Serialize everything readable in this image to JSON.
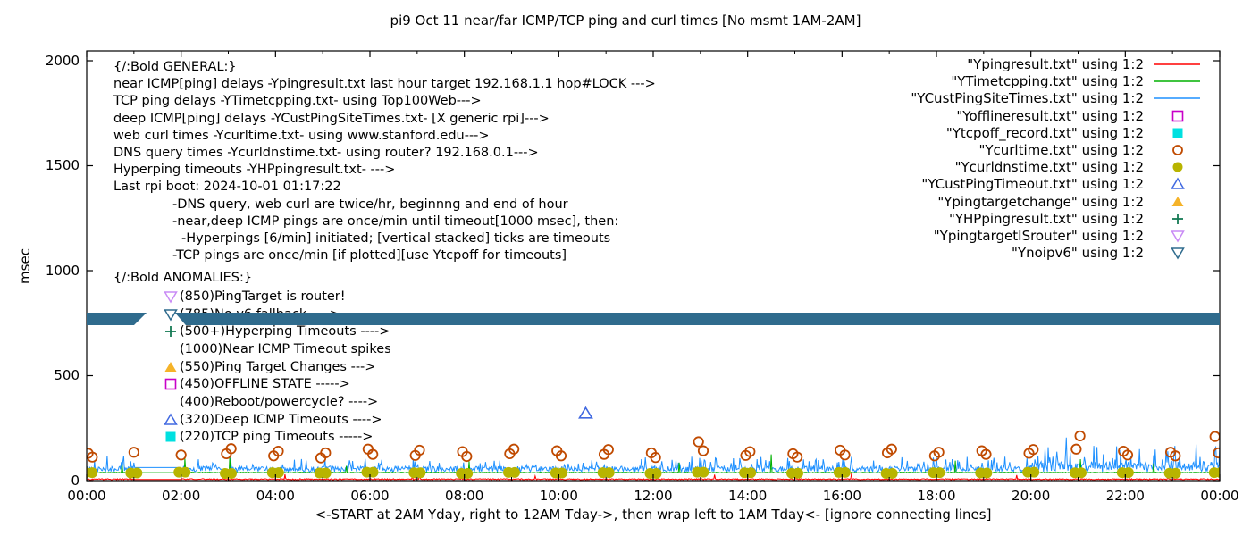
{
  "anomalies": {
    "header": "{/:Bold ANOMALIES:}",
    "items": [
      {
        "marker": "tri-down-open",
        "color": "#c98bf5",
        "text": "(850)PingTarget is router!"
      },
      {
        "marker": "tri-down-open",
        "color": "#2f6b8d",
        "text": "(785)No v6 fallback ---->"
      },
      {
        "marker": "plus",
        "color": "#147a54",
        "text": "(500+)Hyperping Timeouts ---->"
      },
      {
        "marker": "none",
        "color": "",
        "text": "(1000)Near ICMP Timeout spikes"
      },
      {
        "marker": "tri-up-filled",
        "color": "#f5b329",
        "text": "(550)Ping Target Changes --->"
      },
      {
        "marker": "square-open",
        "color": "#c800c8",
        "text": "(450)OFFLINE STATE ----->"
      },
      {
        "marker": "none",
        "color": "",
        "text": "(400)Reboot/powercycle? ---->"
      },
      {
        "marker": "tri-up-open",
        "color": "#4169e1",
        "text": "(320)Deep ICMP Timeouts ---->"
      },
      {
        "marker": "square-filled",
        "color": "#00e0e0",
        "text": "(220)TCP ping Timeouts ----->"
      }
    ]
  },
  "general_lines": [
    {
      "indent": 0,
      "text": "{/:Bold GENERAL:}"
    },
    {
      "indent": 0,
      "text": "near ICMP[ping] delays -Ypingresult.txt last hour target 192.168.1.1 hop#LOCK --->"
    },
    {
      "indent": 0,
      "text": "TCP ping delays -YTimetcpping.txt- using Top100Web--->"
    },
    {
      "indent": 0,
      "text": "deep ICMP[ping] delays -YCustPingSiteTimes.txt- [X generic rpi]--->"
    },
    {
      "indent": 0,
      "text": "web curl times -Ycurltime.txt- using www.stanford.edu--->"
    },
    {
      "indent": 0,
      "text": "DNS query times -Ycurldnstime.txt- using router? 192.168.0.1--->"
    },
    {
      "indent": 0,
      "text": "Hyperping timeouts -YHPpingresult.txt- --->"
    },
    {
      "indent": 0,
      "text": "Last rpi boot: 2024-10-01 01:17:22"
    },
    {
      "indent": 66,
      "text": "-DNS query, web curl are twice/hr, beginnng and end of hour"
    },
    {
      "indent": 66,
      "text": "-near,deep ICMP pings are once/min until timeout[1000 msec], then:"
    },
    {
      "indent": 76,
      "text": "-Hyperpings [6/min] initiated; [vertical stacked] ticks are timeouts"
    },
    {
      "indent": 66,
      "text": "-TCP pings are once/min [if plotted][use Ytcpoff for timeouts]"
    }
  ],
  "legend": [
    {
      "label": "\"Ypingresult.txt\" using 1:2",
      "marker": "line",
      "color": "#ff0000"
    },
    {
      "label": "\"YTimetcpping.txt\" using 1:2",
      "marker": "line",
      "color": "#00b000"
    },
    {
      "label": "\"YCustPingSiteTimes.txt\" using 1:2",
      "marker": "line",
      "color": "#1e90ff"
    },
    {
      "label": "\"Yofflineresult.txt\" using 1:2",
      "marker": "square-open",
      "color": "#c800c8"
    },
    {
      "label": "\"Ytcpoff_record.txt\" using 1:2",
      "marker": "square-filled",
      "color": "#00e0e0"
    },
    {
      "label": "\"Ycurltime.txt\" using 1:2",
      "marker": "circle-open",
      "color": "#c04a00"
    },
    {
      "label": "\"Ycurldnstime.txt\" using 1:2",
      "marker": "circle-filled",
      "color": "#b8b400"
    },
    {
      "label": "\"YCustPingTimeout.txt\" using 1:2",
      "marker": "tri-up-open",
      "color": "#4169e1"
    },
    {
      "label": "\"Ypingtargetchange\" using 1:2",
      "marker": "tri-up-filled",
      "color": "#f5b329"
    },
    {
      "label": "\"YHPpingresult.txt\" using 1:2",
      "marker": "plus",
      "color": "#147a54"
    },
    {
      "label": "\"YpingtargetISrouter\" using 1:2",
      "marker": "tri-down-open",
      "color": "#c98bf5"
    },
    {
      "label": "\"Ynoipv6\" using 1:2",
      "marker": "tri-down-open",
      "color": "#2f6b8d"
    }
  ],
  "chart_data": {
    "type": "line",
    "title": "pi9 Oct 11  near/far ICMP/TCP ping and curl times [No msmt 1AM-2AM]",
    "ylabel": "msec",
    "xlabel": "<-START at 2AM Yday, right to 12AM Tday->, then wrap left to 1AM Tday<- [ignore connecting lines]",
    "ylim": [
      0,
      2045
    ],
    "y_ticks": [
      0,
      500,
      1000,
      1500,
      2000
    ],
    "x_hours_range": [
      0,
      24
    ],
    "x_major_tick_hours": [
      0,
      2,
      4,
      6,
      8,
      10,
      12,
      14,
      16,
      18,
      20,
      22,
      24
    ],
    "x_major_tick_labels": [
      "00:00",
      "02:00",
      "04:00",
      "06:00",
      "08:00",
      "10:00",
      "12:00",
      "14:00",
      "16:00",
      "18:00",
      "20:00",
      "22:00",
      "00:00"
    ],
    "x_minor_tick_hours": [
      1,
      3,
      5,
      7,
      9,
      11,
      13,
      15,
      17,
      19,
      21,
      23
    ],
    "no_msmt_window_hours": [
      1,
      2
    ],
    "rng_seed": 42,
    "series_lines": [
      {
        "name": "YCustPingSiteTimes.txt",
        "color": "#1e90ff",
        "baseline": 42,
        "noise": 26,
        "spike_prob": 0.16,
        "spike_amp": 55,
        "late_hour": 20,
        "late_mult": 1.9,
        "gap_value": 62,
        "spikes": [
          [
            20.3,
            150
          ],
          [
            20.75,
            205
          ],
          [
            21.4,
            160
          ],
          [
            21.9,
            145
          ],
          [
            22.3,
            150
          ],
          [
            22.9,
            140
          ],
          [
            23.5,
            172
          ]
        ]
      },
      {
        "name": "YTimetcpping.txt",
        "color": "#00b000",
        "baseline": 37,
        "noise": 3,
        "gap_value": 38,
        "spikes": [
          [
            0.75,
            78
          ],
          [
            2.08,
            105
          ],
          [
            3.03,
            112
          ],
          [
            5.5,
            70
          ],
          [
            8.1,
            92
          ],
          [
            12.55,
            86
          ],
          [
            14.5,
            125
          ],
          [
            18.4,
            95
          ],
          [
            21.05,
            102
          ],
          [
            22.6,
            82
          ]
        ]
      },
      {
        "name": "Ypingresult.txt",
        "color": "#ff0000",
        "baseline": 4,
        "noise": 5,
        "gap_value": 5,
        "spikes": [
          [
            4.2,
            30
          ],
          [
            6.9,
            26
          ],
          [
            7.05,
            42
          ],
          [
            9.5,
            22
          ],
          [
            13.3,
            28
          ],
          [
            16.2,
            36
          ],
          [
            19.7,
            26
          ],
          [
            22.9,
            20
          ]
        ]
      }
    ],
    "curl_points": {
      "name": "Ycurltime.txt",
      "color": "#c04a00",
      "points": [
        [
          0.03,
          130
        ],
        [
          0.12,
          112
        ],
        [
          1.0,
          135
        ],
        [
          2.0,
          122
        ],
        [
          2.96,
          128
        ],
        [
          3.06,
          152
        ],
        [
          3.96,
          118
        ],
        [
          4.06,
          140
        ],
        [
          4.96,
          108
        ],
        [
          5.06,
          132
        ],
        [
          5.96,
          150
        ],
        [
          6.06,
          125
        ],
        [
          6.96,
          120
        ],
        [
          7.05,
          145
        ],
        [
          7.96,
          138
        ],
        [
          8.05,
          115
        ],
        [
          8.96,
          128
        ],
        [
          9.05,
          150
        ],
        [
          9.96,
          142
        ],
        [
          10.05,
          118
        ],
        [
          10.96,
          125
        ],
        [
          11.05,
          148
        ],
        [
          11.96,
          132
        ],
        [
          12.05,
          110
        ],
        [
          12.96,
          185
        ],
        [
          13.06,
          142
        ],
        [
          13.96,
          120
        ],
        [
          14.05,
          138
        ],
        [
          14.96,
          128
        ],
        [
          15.05,
          112
        ],
        [
          15.96,
          145
        ],
        [
          16.06,
          122
        ],
        [
          16.96,
          132
        ],
        [
          17.05,
          150
        ],
        [
          17.96,
          118
        ],
        [
          18.05,
          135
        ],
        [
          18.96,
          142
        ],
        [
          19.05,
          125
        ],
        [
          19.96,
          130
        ],
        [
          20.05,
          148
        ],
        [
          20.96,
          150
        ],
        [
          21.04,
          213
        ],
        [
          21.96,
          140
        ],
        [
          22.05,
          122
        ],
        [
          22.96,
          135
        ],
        [
          23.06,
          118
        ],
        [
          23.9,
          210
        ],
        [
          23.97,
          132
        ]
      ]
    },
    "dns_points": {
      "name": "Ycurldnstime.txt",
      "color": "#b8b400",
      "points": [
        [
          0.05,
          38
        ],
        [
          1.0,
          36
        ],
        [
          2.02,
          40
        ],
        [
          3.0,
          34
        ],
        [
          4.0,
          38
        ],
        [
          5.0,
          36
        ],
        [
          6.0,
          40
        ],
        [
          7.0,
          37
        ],
        [
          8.0,
          34
        ],
        [
          9.0,
          39
        ],
        [
          10.0,
          36
        ],
        [
          11.0,
          38
        ],
        [
          12.0,
          34
        ],
        [
          13.0,
          40
        ],
        [
          14.0,
          37
        ],
        [
          15.0,
          35
        ],
        [
          16.0,
          39
        ],
        [
          17.0,
          34
        ],
        [
          18.0,
          38
        ],
        [
          19.0,
          36
        ],
        [
          20.0,
          40
        ],
        [
          21.0,
          37
        ],
        [
          22.0,
          38
        ],
        [
          23.0,
          35
        ],
        [
          23.95,
          38
        ]
      ]
    },
    "deep_icmp_timeout_points": {
      "name": "YCustPingTimeout.txt",
      "color": "#4169e1",
      "points": [
        [
          10.57,
          320
        ]
      ]
    },
    "noipv6_band": {
      "name": "Ynoipv6",
      "color": "#2f6b8d",
      "value": 785,
      "top_value": 800,
      "bottom_value": 740,
      "top_gap_hours": [
        1.27,
        1.87
      ],
      "bottom_gap_hours": [
        1.0,
        2.1
      ]
    }
  }
}
